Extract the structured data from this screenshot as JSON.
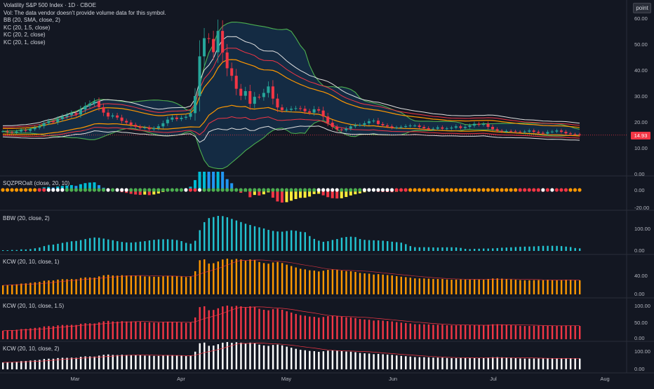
{
  "main": {
    "title": "Volatility S&P 500 Index · 1D · CBOE",
    "vol_note": "Vol: The data vendor doesn't provide volume data for this symbol.",
    "indicators": [
      "BB (20, SMA, close, 2)",
      "KC (20, 1.5, close)",
      "KC (20, 2, close)",
      "KC (20, 1, close)"
    ],
    "y_ticks": [
      "60.00",
      "50.00",
      "40.00",
      "30.00",
      "20.00",
      "10.00",
      "0.00"
    ],
    "last_price": "14.93",
    "last_price_value": 14.93,
    "point_button": "point"
  },
  "panes": [
    {
      "id": "sqzpro",
      "label": "SQZPROalt (close, 20, 10)",
      "y_ticks": [
        "0.00",
        "-20.00"
      ]
    },
    {
      "id": "bbw",
      "label": "BBW (20, close, 2)",
      "y_ticks": [
        "100.00",
        "0.00"
      ]
    },
    {
      "id": "kcw1",
      "label": "KCW (20, 10, close, 1)",
      "y_ticks": [
        "40.00",
        "0.00"
      ]
    },
    {
      "id": "kcw15",
      "label": "KCW (20, 10, close, 1.5)",
      "y_ticks": [
        "100.00",
        "50.00",
        "0.00"
      ]
    },
    {
      "id": "kcw2",
      "label": "KCW (20, 10, close, 2)",
      "y_ticks": [
        "100.00",
        "0.00"
      ]
    }
  ],
  "x_axis": {
    "labels": [
      "Mar",
      "Apr",
      "May",
      "Jun",
      "Jul",
      "Aug"
    ]
  },
  "colors": {
    "background": "#131722",
    "up": "#26a69a",
    "down": "#f23645",
    "bb_band": "#4caf50",
    "kc_outer": "#e0e0e0",
    "kc_mid": "#f23645",
    "kc_inner": "#ff9800",
    "bbw": "#22c5d3",
    "kcw1": "#ff9800",
    "kcw15": "#f23645",
    "kcw2": "#ffffff"
  },
  "chart_data": {
    "type": "candlestick",
    "close": [
      16.4,
      16.1,
      15.9,
      16.3,
      16.9,
      16.6,
      17.2,
      17.8,
      18.4,
      19.6,
      20.3,
      19.9,
      21.1,
      22.0,
      22.6,
      23.4,
      22.9,
      24.8,
      26.2,
      27.1,
      27.9,
      25.7,
      23.6,
      22.1,
      22.5,
      21.7,
      20.4,
      19.8,
      18.9,
      18.2,
      17.7,
      17.9,
      17.2,
      17.6,
      18.3,
      19.5,
      20.9,
      21.7,
      21.1,
      21.6,
      22.0,
      23.4,
      30.0,
      45.3,
      52.3,
      52.0,
      46.9,
      55.1,
      46.8,
      40.7,
      37.8,
      32.8,
      30.1,
      31.9,
      27.0,
      29.7,
      29.6,
      31.2,
      33.7,
      29.0,
      25.6,
      24.6,
      24.7,
      25.1,
      25.3,
      25.1,
      24.1,
      23.6,
      24.9,
      24.4,
      22.1,
      19.7,
      18.1,
      17.1,
      16.8,
      17.4,
      18.3,
      18.8,
      18.9,
      19.5,
      20.3,
      20.5,
      19.2,
      18.7,
      18.3,
      17.8,
      17.9,
      18.1,
      18.4,
      18.6,
      18.6,
      18.1,
      17.6,
      17.2,
      17.4,
      17.9,
      17.4,
      17.5,
      17.8,
      18.3,
      17.7,
      18.1,
      18.6,
      19.3,
      18.9,
      19.2,
      18.1,
      17.2,
      16.6,
      16.3,
      16.5,
      16.4,
      16.2,
      16.1,
      16.3,
      16.7,
      16.2,
      15.8,
      15.5,
      16.1,
      16.3,
      16.7,
      16.2,
      15.6,
      15.3,
      15.2,
      14.93
    ]
  }
}
